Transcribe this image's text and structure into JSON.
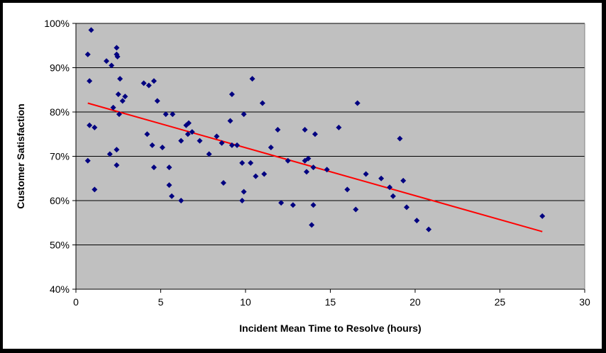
{
  "chart_data": {
    "type": "scatter",
    "title": "",
    "xlabel": "Incident Mean Time to Resolve (hours)",
    "ylabel": "Customer Satisfaction",
    "xlim": [
      0,
      30
    ],
    "ylim": [
      0.4,
      1.0
    ],
    "x_ticks": [
      0,
      5,
      10,
      15,
      20,
      25,
      30
    ],
    "y_ticks": [
      0.4,
      0.5,
      0.6,
      0.7,
      0.8,
      0.9,
      1.0
    ],
    "x_tick_labels": [
      "0",
      "5",
      "10",
      "15",
      "20",
      "25",
      "30"
    ],
    "y_tick_labels": [
      "40%",
      "50%",
      "60%",
      "70%",
      "80%",
      "90%",
      "100%"
    ],
    "grid": "horizontal",
    "legend": "none",
    "plot_background": "#c0c0c0",
    "marker_color": "#000080",
    "trendline_color": "#ff0000",
    "trendline": {
      "x": [
        0.7,
        27.5
      ],
      "y": [
        0.82,
        0.53
      ]
    },
    "points": [
      {
        "x": 0.7,
        "y": 0.93
      },
      {
        "x": 0.8,
        "y": 0.87
      },
      {
        "x": 0.9,
        "y": 0.985
      },
      {
        "x": 0.8,
        "y": 0.77
      },
      {
        "x": 1.1,
        "y": 0.765
      },
      {
        "x": 0.7,
        "y": 0.69
      },
      {
        "x": 1.1,
        "y": 0.625
      },
      {
        "x": 1.8,
        "y": 0.915
      },
      {
        "x": 2.1,
        "y": 0.905
      },
      {
        "x": 2.4,
        "y": 0.93
      },
      {
        "x": 2.4,
        "y": 0.945
      },
      {
        "x": 2.45,
        "y": 0.925
      },
      {
        "x": 2.6,
        "y": 0.875
      },
      {
        "x": 2.5,
        "y": 0.84
      },
      {
        "x": 2.75,
        "y": 0.825
      },
      {
        "x": 2.9,
        "y": 0.835
      },
      {
        "x": 2.2,
        "y": 0.81
      },
      {
        "x": 2.55,
        "y": 0.795
      },
      {
        "x": 2.0,
        "y": 0.705
      },
      {
        "x": 2.4,
        "y": 0.715
      },
      {
        "x": 2.4,
        "y": 0.68
      },
      {
        "x": 4.0,
        "y": 0.865
      },
      {
        "x": 4.3,
        "y": 0.86
      },
      {
        "x": 4.6,
        "y": 0.87
      },
      {
        "x": 4.8,
        "y": 0.825
      },
      {
        "x": 4.2,
        "y": 0.75
      },
      {
        "x": 4.5,
        "y": 0.725
      },
      {
        "x": 5.1,
        "y": 0.72
      },
      {
        "x": 4.6,
        "y": 0.675
      },
      {
        "x": 5.3,
        "y": 0.795
      },
      {
        "x": 5.7,
        "y": 0.795
      },
      {
        "x": 5.5,
        "y": 0.675
      },
      {
        "x": 5.5,
        "y": 0.635
      },
      {
        "x": 5.65,
        "y": 0.61
      },
      {
        "x": 6.2,
        "y": 0.6
      },
      {
        "x": 6.2,
        "y": 0.735
      },
      {
        "x": 6.5,
        "y": 0.77
      },
      {
        "x": 6.65,
        "y": 0.775
      },
      {
        "x": 6.6,
        "y": 0.75
      },
      {
        "x": 6.85,
        "y": 0.755
      },
      {
        "x": 7.3,
        "y": 0.735
      },
      {
        "x": 7.85,
        "y": 0.705
      },
      {
        "x": 8.3,
        "y": 0.745
      },
      {
        "x": 8.6,
        "y": 0.73
      },
      {
        "x": 8.7,
        "y": 0.64
      },
      {
        "x": 9.1,
        "y": 0.78
      },
      {
        "x": 9.2,
        "y": 0.84
      },
      {
        "x": 9.2,
        "y": 0.725
      },
      {
        "x": 9.5,
        "y": 0.725
      },
      {
        "x": 9.9,
        "y": 0.795
      },
      {
        "x": 9.8,
        "y": 0.685
      },
      {
        "x": 9.9,
        "y": 0.62
      },
      {
        "x": 9.8,
        "y": 0.6
      },
      {
        "x": 10.3,
        "y": 0.685
      },
      {
        "x": 10.4,
        "y": 0.875
      },
      {
        "x": 10.6,
        "y": 0.655
      },
      {
        "x": 11.0,
        "y": 0.82
      },
      {
        "x": 11.1,
        "y": 0.66
      },
      {
        "x": 11.5,
        "y": 0.72
      },
      {
        "x": 11.9,
        "y": 0.76
      },
      {
        "x": 12.1,
        "y": 0.595
      },
      {
        "x": 12.5,
        "y": 0.69
      },
      {
        "x": 12.8,
        "y": 0.59
      },
      {
        "x": 13.5,
        "y": 0.76
      },
      {
        "x": 13.5,
        "y": 0.69
      },
      {
        "x": 13.7,
        "y": 0.695
      },
      {
        "x": 13.6,
        "y": 0.665
      },
      {
        "x": 14.0,
        "y": 0.675
      },
      {
        "x": 14.1,
        "y": 0.75
      },
      {
        "x": 14.0,
        "y": 0.59
      },
      {
        "x": 13.9,
        "y": 0.545
      },
      {
        "x": 14.8,
        "y": 0.67
      },
      {
        "x": 15.5,
        "y": 0.765
      },
      {
        "x": 16.0,
        "y": 0.625
      },
      {
        "x": 16.5,
        "y": 0.58
      },
      {
        "x": 16.6,
        "y": 0.82
      },
      {
        "x": 17.1,
        "y": 0.66
      },
      {
        "x": 18.0,
        "y": 0.65
      },
      {
        "x": 18.5,
        "y": 0.63
      },
      {
        "x": 18.7,
        "y": 0.61
      },
      {
        "x": 19.1,
        "y": 0.74
      },
      {
        "x": 19.3,
        "y": 0.645
      },
      {
        "x": 19.5,
        "y": 0.585
      },
      {
        "x": 20.1,
        "y": 0.555
      },
      {
        "x": 20.8,
        "y": 0.535
      },
      {
        "x": 27.5,
        "y": 0.565
      }
    ]
  }
}
